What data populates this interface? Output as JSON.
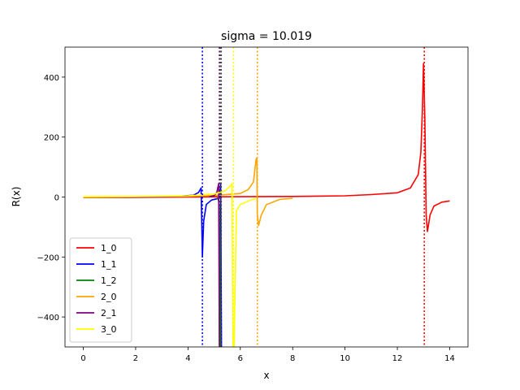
{
  "chart_data": {
    "type": "line",
    "title": "sigma = 10.019",
    "xlabel": "x",
    "ylabel": "R(x)",
    "xlim": [
      -0.7,
      14.7
    ],
    "ylim": [
      -500,
      500
    ],
    "xticks": [
      0,
      2,
      4,
      6,
      8,
      10,
      12,
      14
    ],
    "xtick_labels": [
      "0",
      "2",
      "4",
      "6",
      "8",
      "10",
      "12",
      "14"
    ],
    "yticks": [
      -400,
      -200,
      0,
      200,
      400
    ],
    "ytick_labels": [
      "−400",
      "−200",
      "0",
      "200",
      "400"
    ],
    "grid": false,
    "legend_position": "lower-left",
    "series": [
      {
        "name": "1_0",
        "color": "#ff0000",
        "points": [
          [
            0,
            -2
          ],
          [
            2,
            -1
          ],
          [
            4,
            0
          ],
          [
            6,
            1
          ],
          [
            8,
            2
          ],
          [
            10,
            4
          ],
          [
            11,
            8
          ],
          [
            12,
            14
          ],
          [
            12.5,
            30
          ],
          [
            12.8,
            75
          ],
          [
            12.9,
            150
          ],
          [
            12.96,
            300
          ],
          [
            13.0,
            445
          ],
          [
            13.05,
            260
          ],
          [
            13.1,
            -60
          ],
          [
            13.15,
            -115
          ],
          [
            13.25,
            -60
          ],
          [
            13.4,
            -30
          ],
          [
            13.7,
            -17
          ],
          [
            14.0,
            -13
          ]
        ],
        "marker_x": 13.03
      },
      {
        "name": "1_1",
        "color": "#0000ff",
        "points": [
          [
            0,
            -1
          ],
          [
            2,
            0
          ],
          [
            3.5,
            2
          ],
          [
            4.2,
            6
          ],
          [
            4.4,
            15
          ],
          [
            4.5,
            30
          ],
          [
            4.55,
            -200
          ],
          [
            4.6,
            -80
          ],
          [
            4.7,
            -25
          ],
          [
            4.9,
            -10
          ],
          [
            5.1,
            -6
          ],
          [
            5.2,
            -4
          ],
          [
            5.25,
            45
          ],
          [
            5.28,
            -500
          ]
        ],
        "marker_x": 4.55
      },
      {
        "name": "1_2",
        "color": "#008000",
        "points": [
          [
            5.1,
            -3
          ],
          [
            5.15,
            -6
          ],
          [
            5.2,
            -25
          ],
          [
            5.24,
            -500
          ]
        ],
        "marker_x": 5.22
      },
      {
        "name": "2_0",
        "color": "#ffa500",
        "points": [
          [
            0,
            -1
          ],
          [
            2,
            1
          ],
          [
            4,
            3
          ],
          [
            5,
            5
          ],
          [
            6,
            12
          ],
          [
            6.3,
            25
          ],
          [
            6.5,
            50
          ],
          [
            6.6,
            125
          ],
          [
            6.63,
            130
          ],
          [
            6.65,
            -60
          ],
          [
            6.7,
            -95
          ],
          [
            6.8,
            -60
          ],
          [
            7.0,
            -25
          ],
          [
            7.5,
            -8
          ],
          [
            8.0,
            -4
          ]
        ],
        "marker_x": 6.65
      },
      {
        "name": "2_1",
        "color": "#800080",
        "points": [
          [
            4.8,
            0
          ],
          [
            5.0,
            5
          ],
          [
            5.1,
            15
          ],
          [
            5.17,
            45
          ],
          [
            5.2,
            -500
          ]
        ],
        "marker_x": 5.2
      },
      {
        "name": "3_0",
        "color": "#ffff00",
        "points": [
          [
            0,
            1
          ],
          [
            2,
            2
          ],
          [
            4,
            4
          ],
          [
            5,
            10
          ],
          [
            5.4,
            20
          ],
          [
            5.6,
            35
          ],
          [
            5.68,
            45
          ],
          [
            5.72,
            -500
          ],
          [
            5.76,
            -500
          ],
          [
            5.85,
            -45
          ],
          [
            6.0,
            -25
          ],
          [
            6.4,
            -10
          ],
          [
            6.6,
            -5
          ]
        ],
        "marker_x": 5.74
      }
    ],
    "vertical_marker_extra": {
      "color": "#444444",
      "x": 5.27
    }
  }
}
